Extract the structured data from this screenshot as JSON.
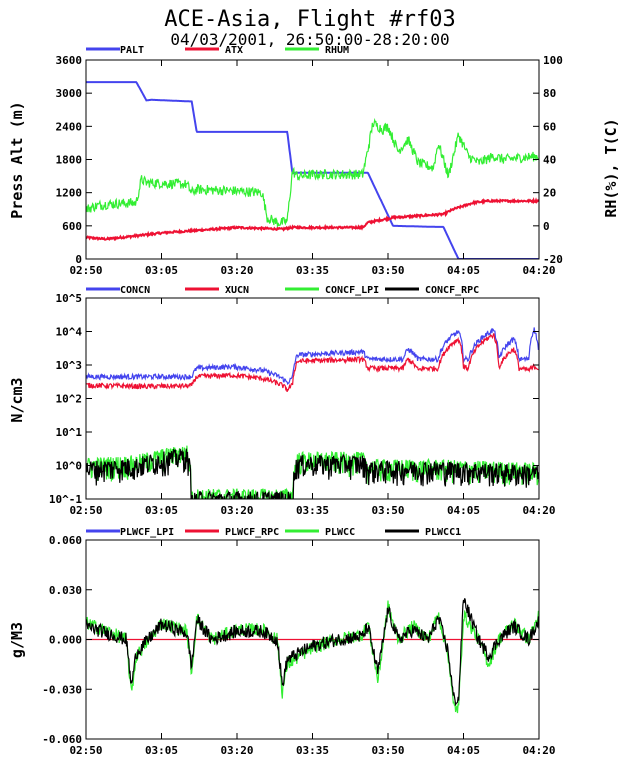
{
  "title": "ACE-Asia, Flight #rf03",
  "subtitle": "04/03/2001, 26:50:00-28:20:00",
  "chart_data": [
    {
      "type": "line",
      "ylabel": "Press Alt (m)",
      "ylabel_right": "RH(%), T(C)",
      "x_ticks": [
        "02:50",
        "03:05",
        "03:20",
        "03:35",
        "03:50",
        "04:05",
        "04:20"
      ],
      "xlim_minutes": [
        170,
        260
      ],
      "ylim": [
        0,
        3600
      ],
      "y_ticks": [
        "0",
        "600",
        "1200",
        "1800",
        "2400",
        "3000",
        "3600"
      ],
      "y2lim": [
        -20,
        100
      ],
      "y2_ticks": [
        "-20",
        "0",
        "20",
        "40",
        "60",
        "80",
        "100"
      ],
      "series": [
        {
          "name": "PALT",
          "axis": "left",
          "color": "#4444ee",
          "x": [
            170,
            174,
            174.5,
            180,
            182,
            183,
            191,
            192,
            210,
            211,
            211.5,
            225,
            226,
            231,
            240,
            241,
            244,
            257,
            258,
            260
          ],
          "y": [
            3200,
            3200,
            3200,
            3200,
            2870,
            2880,
            2850,
            2300,
            2300,
            1550,
            1560,
            1560,
            1560,
            600,
            580,
            580,
            0,
            0,
            0,
            0
          ]
        },
        {
          "name": "ATX",
          "axis": "right",
          "color": "#ee1133",
          "x": [
            170,
            174,
            180,
            186,
            191,
            200,
            209,
            211,
            216,
            225,
            226,
            231,
            241,
            243,
            247,
            250,
            260
          ],
          "y": [
            -7,
            -8,
            -6,
            -4,
            -3,
            -1,
            -2,
            -1,
            -1,
            -1,
            2,
            5,
            7,
            10,
            14,
            15,
            15
          ]
        },
        {
          "name": "RHUM",
          "axis": "right",
          "color": "#33ee33",
          "x": [
            170,
            172,
            174,
            180,
            181,
            182,
            190,
            191,
            192,
            200,
            205,
            206,
            208,
            209,
            210,
            211,
            212,
            216,
            218,
            222,
            225,
            226,
            227,
            229,
            230,
            232,
            234,
            236,
            239,
            240,
            242,
            244,
            246,
            248,
            251,
            253,
            256,
            260
          ],
          "y": [
            10,
            12,
            13,
            14,
            28,
            26,
            25,
            20,
            22,
            21,
            20,
            5,
            2,
            2,
            3,
            33,
            30,
            31,
            31,
            31,
            31,
            46,
            62,
            58,
            60,
            45,
            52,
            38,
            35,
            50,
            30,
            55,
            42,
            38,
            42,
            40,
            41,
            42
          ]
        }
      ]
    },
    {
      "type": "line",
      "ylabel": "N/cm3",
      "x_ticks": [
        "02:50",
        "03:05",
        "03:20",
        "03:35",
        "03:50",
        "04:05",
        "04:20"
      ],
      "xlim_minutes": [
        170,
        260
      ],
      "scale": "log",
      "ylim": [
        0.1,
        100000
      ],
      "y_ticks": [
        "10^-1",
        "10^0",
        "10^1",
        "10^2",
        "10^3",
        "10^4",
        "10^5"
      ],
      "series": [
        {
          "name": "CONCN",
          "color": "#4444ee",
          "x": [
            170,
            182,
            191,
            192,
            199,
            205,
            209,
            210,
            211,
            212,
            225,
            226,
            233,
            234,
            236,
            237,
            240,
            244,
            245,
            246,
            251,
            252,
            255,
            256,
            258,
            259,
            260
          ],
          "y": [
            450,
            450,
            450,
            800,
            900,
            700,
            400,
            300,
            400,
            2000,
            2500,
            1500,
            1500,
            3000,
            1500,
            1500,
            1500,
            10000,
            1500,
            1500,
            11000,
            1500,
            6000,
            1500,
            1500,
            12000,
            1700
          ]
        },
        {
          "name": "XUCN",
          "color": "#ee1133",
          "x": [
            170,
            182,
            191,
            192,
            199,
            205,
            209,
            210,
            211,
            212,
            225,
            226,
            233,
            234,
            236,
            237,
            240,
            244,
            245,
            246,
            251,
            252,
            255,
            256,
            258,
            259,
            260
          ],
          "y": [
            250,
            230,
            240,
            450,
            500,
            400,
            250,
            180,
            250,
            1300,
            1500,
            800,
            800,
            1500,
            700,
            800,
            800,
            6000,
            900,
            800,
            8000,
            800,
            3000,
            800,
            700,
            900,
            800
          ]
        },
        {
          "name": "CONCF_LPI",
          "color": "#33ee33",
          "x": [
            170,
            180,
            190,
            191,
            192,
            211,
            212,
            225,
            226,
            240,
            250,
            260
          ],
          "y": [
            1,
            1.2,
            2.5,
            0.1,
            0.12,
            0.12,
            1.5,
            1.5,
            0.9,
            0.9,
            0.8,
            0.7
          ]
        },
        {
          "name": "CONCF_RPC",
          "color": "#000000",
          "x": [
            170,
            180,
            190,
            191,
            192,
            211,
            212,
            225,
            226,
            240,
            250,
            260
          ],
          "y": [
            0.8,
            1.0,
            2.0,
            0.08,
            0.1,
            0.1,
            1.2,
            1.2,
            0.8,
            0.8,
            0.7,
            0.6
          ]
        }
      ]
    },
    {
      "type": "line",
      "ylabel": "g/M3",
      "x_ticks": [
        "02:50",
        "03:05",
        "03:20",
        "03:35",
        "03:50",
        "04:05",
        "04:20"
      ],
      "xlim_minutes": [
        170,
        260
      ],
      "ylim": [
        -0.06,
        0.06
      ],
      "y_ticks": [
        "-0.060",
        "-0.030",
        "0.000",
        "0.030",
        "0.060"
      ],
      "series": [
        {
          "name": "PLWCF_LPI",
          "color": "#4444ee",
          "x": [],
          "y": []
        },
        {
          "name": "PLWCF_RPC",
          "color": "#ee1133",
          "x": [
            170,
            260
          ],
          "y": [
            0,
            0
          ]
        },
        {
          "name": "PLWCC",
          "color": "#33ee33",
          "x": [
            170,
            175,
            178,
            179,
            180,
            185,
            190,
            191,
            192,
            195,
            200,
            205,
            208,
            209,
            210,
            215,
            220,
            225,
            226,
            228,
            230,
            232,
            235,
            238,
            240,
            242,
            243,
            244,
            245,
            248,
            250,
            252,
            255,
            258,
            260
          ],
          "y": [
            0.01,
            0.004,
            0.0,
            -0.033,
            -0.01,
            0.01,
            0.005,
            -0.02,
            0.013,
            0.0,
            0.006,
            0.006,
            0.0,
            -0.032,
            -0.015,
            -0.005,
            0.0,
            0.003,
            0.01,
            -0.025,
            0.02,
            0.0,
            0.008,
            0.0,
            0.015,
            -0.01,
            -0.04,
            -0.042,
            0.015,
            0.0,
            -0.015,
            0.0,
            0.01,
            0.0,
            0.015
          ]
        },
        {
          "name": "PLWCC1",
          "color": "#000000",
          "x": [
            170,
            175,
            178,
            179,
            180,
            185,
            190,
            191,
            192,
            195,
            200,
            205,
            208,
            209,
            210,
            215,
            220,
            225,
            226,
            228,
            230,
            232,
            235,
            238,
            240,
            242,
            243,
            244,
            245,
            248,
            250,
            252,
            255,
            258,
            260
          ],
          "y": [
            0.008,
            0.003,
            0.0,
            -0.028,
            -0.008,
            0.009,
            0.004,
            -0.016,
            0.012,
            0.0,
            0.005,
            0.005,
            0.0,
            -0.028,
            -0.012,
            -0.004,
            0.0,
            0.002,
            0.008,
            -0.02,
            0.018,
            0.0,
            0.006,
            0.0,
            0.013,
            -0.008,
            -0.035,
            -0.037,
            0.025,
            0.0,
            -0.01,
            0.0,
            0.008,
            0.0,
            0.012
          ]
        }
      ]
    }
  ]
}
